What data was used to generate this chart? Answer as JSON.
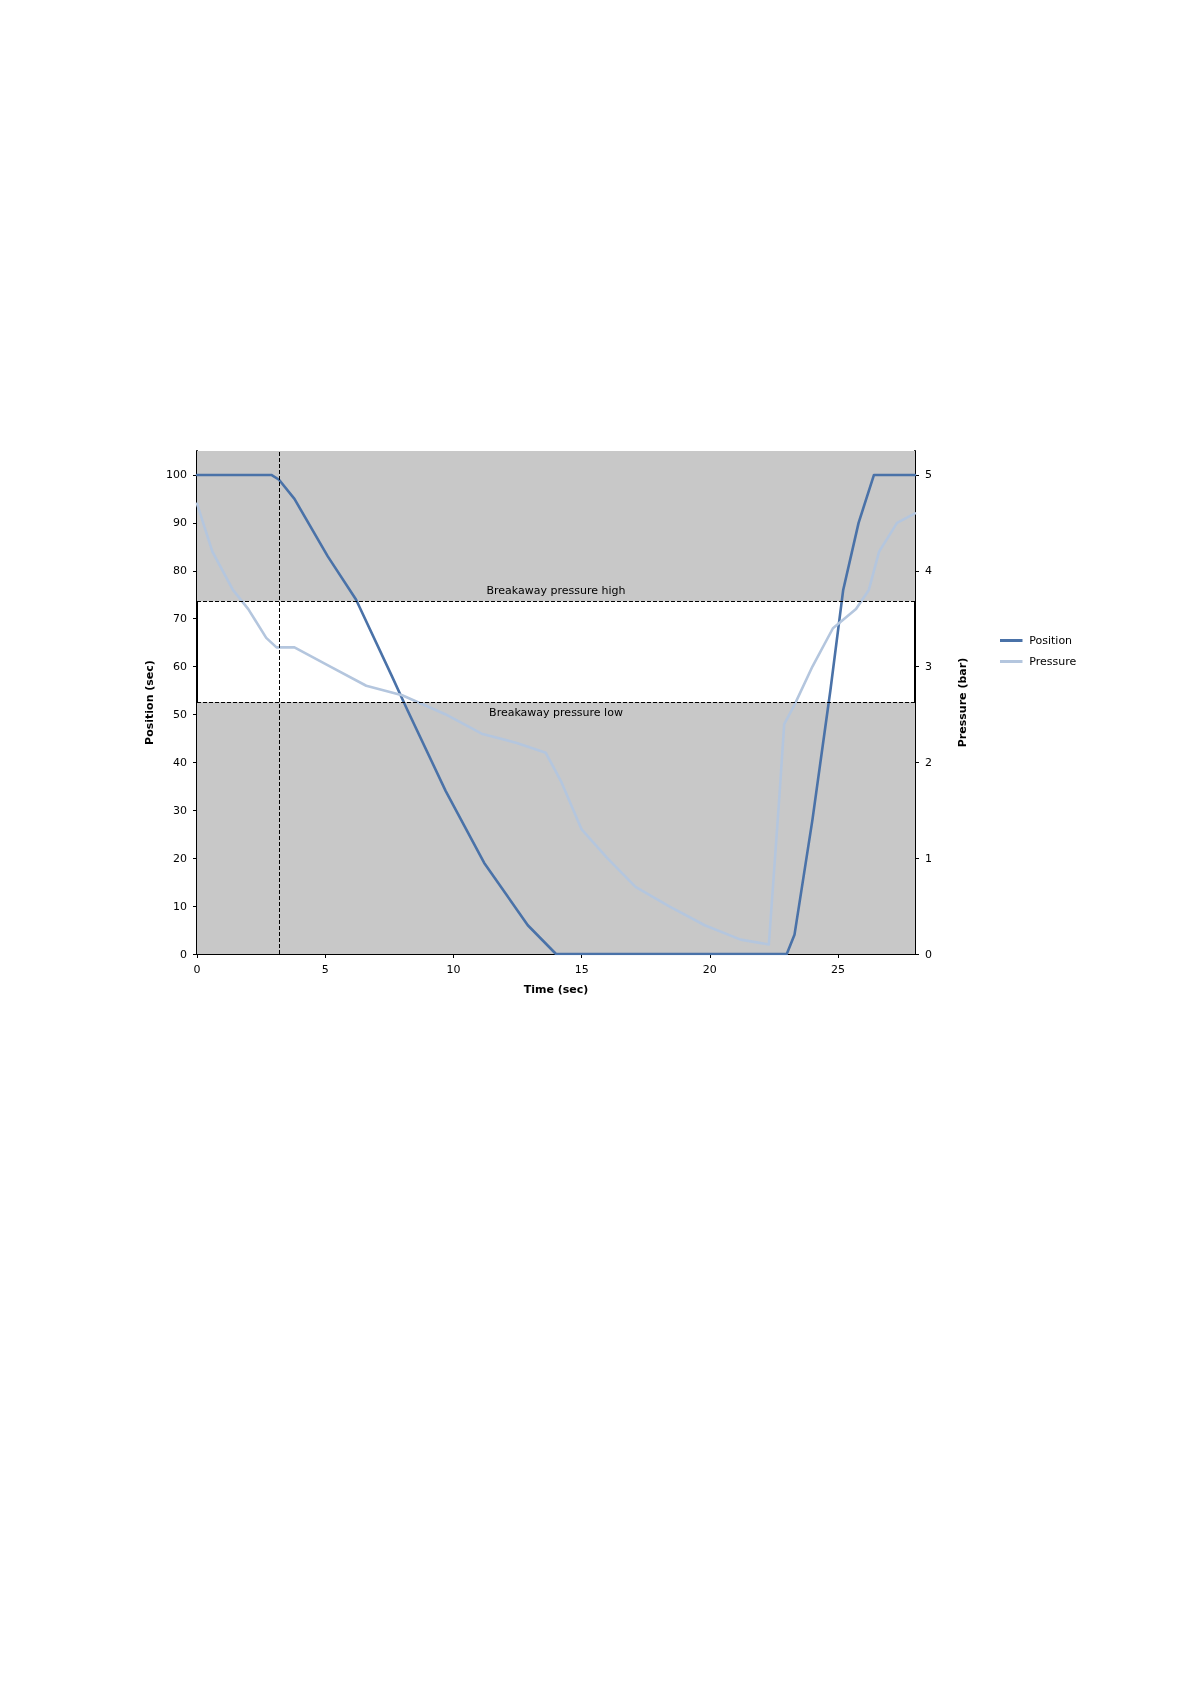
{
  "chart_data": {
    "type": "line",
    "xlabel": "Time (sec)",
    "ylabel": "Position (sec)",
    "y2label": "Pressure (bar)",
    "xlim": [
      0,
      28
    ],
    "xticks": [
      0,
      5,
      10,
      15,
      20,
      25
    ],
    "ylim": [
      0,
      105
    ],
    "yticks": [
      0,
      10,
      20,
      30,
      40,
      50,
      60,
      70,
      80,
      90,
      100
    ],
    "y2lim": [
      0,
      5.25
    ],
    "y2ticks": [
      0,
      1,
      2,
      3,
      4,
      5
    ],
    "series": [
      {
        "name": "Position",
        "color": "#4a72a8",
        "x": [
          0,
          2.9,
          3.2,
          3.8,
          5.1,
          6.2,
          7.6,
          8.2,
          9.7,
          11.2,
          12.9,
          14.0,
          14.1,
          23.0,
          23.3,
          24.0,
          24.7,
          25.2,
          25.8,
          26.4,
          28.0
        ],
        "values": [
          100,
          100,
          99,
          95,
          83,
          74,
          58,
          51,
          34,
          19,
          6,
          0,
          0,
          0,
          4,
          28,
          55,
          76,
          90,
          100,
          100
        ]
      },
      {
        "name": "Pressure",
        "color": "#b4c6de",
        "axis": "y2",
        "x": [
          0,
          0.6,
          1.4,
          2.0,
          2.7,
          3.1,
          3.4,
          3.8,
          5.2,
          6.6,
          8.0,
          9.7,
          11.1,
          12.5,
          13.6,
          14.0,
          14.2,
          15.0,
          16.0,
          17.1,
          18.4,
          19.8,
          21.2,
          22.3,
          22.7,
          22.9,
          23.3,
          24.0,
          24.8,
          25.7,
          26.2,
          26.6,
          27.3,
          28.0
        ],
        "values": [
          4.7,
          4.2,
          3.8,
          3.6,
          3.3,
          3.2,
          3.2,
          3.2,
          3.0,
          2.8,
          2.7,
          2.5,
          2.3,
          2.2,
          2.1,
          1.9,
          1.8,
          1.3,
          1.0,
          0.7,
          0.5,
          0.3,
          0.15,
          0.1,
          1.6,
          2.4,
          2.6,
          3.0,
          3.4,
          3.6,
          3.8,
          4.2,
          4.5,
          4.6
        ]
      }
    ],
    "ref_lines": [
      {
        "axis": "y2",
        "value": 3.68,
        "label": "Breakaway pressure high",
        "color": "#000000",
        "line_style": "dashed"
      },
      {
        "axis": "y2",
        "value": 2.63,
        "label": "Breakaway pressure low",
        "color": "#000000",
        "line_style": "dashed"
      },
      {
        "axis": "x",
        "value": 3.2,
        "color": "#000000",
        "line_style": "dashed"
      }
    ],
    "bands": [
      {
        "axis": "y2",
        "from": 0,
        "to": 2.63,
        "color": "#c8c8c8"
      },
      {
        "axis": "y2",
        "from": 3.68,
        "to": 5.25,
        "color": "#c8c8c8"
      }
    ],
    "grid": false,
    "legend": "right",
    "marker": "none",
    "line_style": "solid"
  }
}
